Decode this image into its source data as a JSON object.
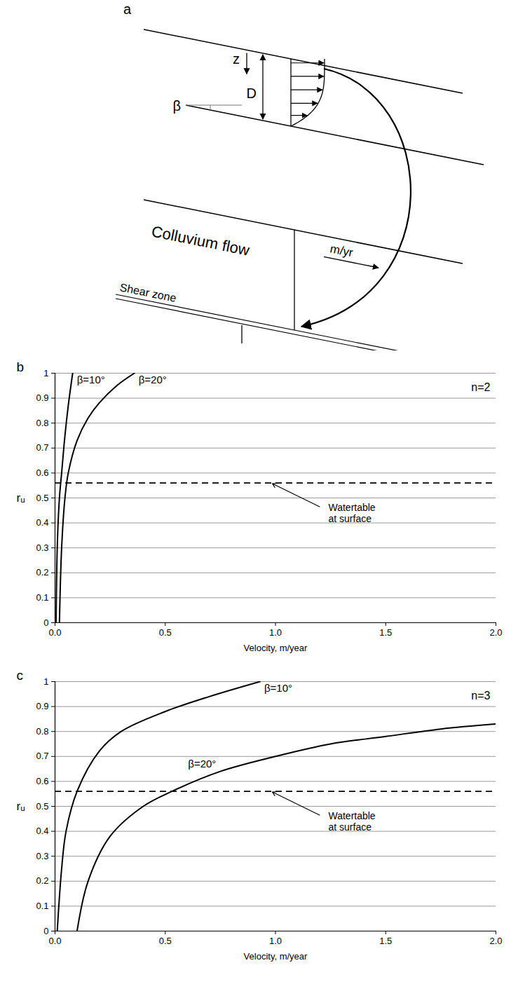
{
  "diagram": {
    "panel_label": "a",
    "labels": {
      "depth": "z",
      "thickness": "D",
      "slope": "β",
      "rate": "m/yr",
      "layer": "Colluvium flow",
      "shear": "Shear zone"
    }
  },
  "chart_data": [
    {
      "type": "line",
      "panel": "b",
      "annotation": "n=2",
      "x_label": "Velocity, m/year",
      "y_label": "rᵤ",
      "xlim": [
        0,
        2
      ],
      "ylim": [
        0,
        1
      ],
      "xticks": [
        {
          "value": 0,
          "label": "0.0"
        },
        0.5,
        {
          "value": 1,
          "label": "1.0"
        },
        1.5,
        {
          "value": 2,
          "label": "2.0"
        }
      ],
      "yticks": [
        0,
        0.1,
        0.2,
        0.3,
        0.4,
        0.5,
        0.6,
        0.7,
        0.8,
        0.9,
        1
      ],
      "grid": true,
      "reference_line": {
        "value": 0.56,
        "label": "Watertable at surface",
        "line_style": "dashed",
        "color": "#000000"
      },
      "series": [
        {
          "name": "β=10°",
          "color": "#000000",
          "x": [
            0.005,
            0.01,
            0.02,
            0.03,
            0.045,
            0.06,
            0.08
          ],
          "values": [
            0,
            0.3,
            0.5,
            0.6,
            0.75,
            0.87,
            1
          ]
        },
        {
          "name": "β=20°",
          "color": "#000000",
          "x": [
            0.02,
            0.03,
            0.045,
            0.06,
            0.1,
            0.15,
            0.2,
            0.28,
            0.36
          ],
          "values": [
            0,
            0.3,
            0.5,
            0.6,
            0.73,
            0.82,
            0.88,
            0.95,
            1
          ]
        }
      ]
    },
    {
      "type": "line",
      "panel": "c",
      "annotation": "n=3",
      "x_label": "Velocity, m/year",
      "y_label": "rᵤ",
      "xlim": [
        0,
        2
      ],
      "ylim": [
        0,
        1
      ],
      "xticks": [
        {
          "value": 0,
          "label": "0.0"
        },
        0.5,
        {
          "value": 1,
          "label": "1.0"
        },
        1.5,
        {
          "value": 2,
          "label": "2.0"
        }
      ],
      "yticks": [
        0,
        0.1,
        0.2,
        0.3,
        0.4,
        0.5,
        0.6,
        0.7,
        0.8,
        0.9,
        1
      ],
      "grid": true,
      "reference_line": {
        "value": 0.56,
        "label": "Watertable at surface",
        "line_style": "dashed",
        "color": "#000000"
      },
      "series": [
        {
          "name": "β=10°",
          "color": "#000000",
          "x": [
            0.01,
            0.03,
            0.05,
            0.1,
            0.2,
            0.3,
            0.5,
            0.7,
            0.93
          ],
          "values": [
            0,
            0.25,
            0.4,
            0.56,
            0.72,
            0.8,
            0.88,
            0.94,
            1
          ]
        },
        {
          "name": "β=20°",
          "color": "#000000",
          "x": [
            0.1,
            0.15,
            0.25,
            0.4,
            0.53,
            0.75,
            1,
            1.25,
            1.5,
            1.75,
            2
          ],
          "values": [
            0,
            0.2,
            0.38,
            0.5,
            0.56,
            0.64,
            0.7,
            0.75,
            0.78,
            0.81,
            0.83
          ]
        }
      ]
    }
  ]
}
